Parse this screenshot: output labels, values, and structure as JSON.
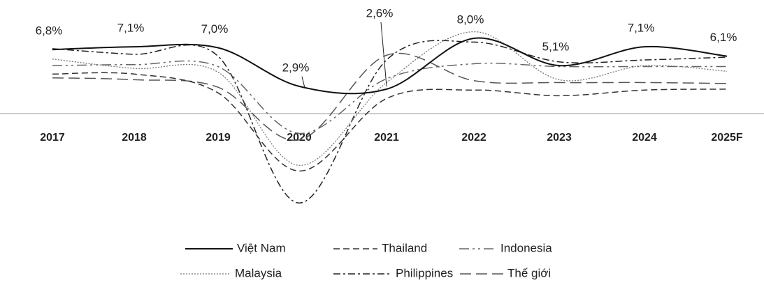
{
  "chart_data": {
    "type": "line",
    "categories": [
      "2017",
      "2018",
      "2019",
      "2020",
      "2021",
      "2022",
      "2023",
      "2024",
      "2025F"
    ],
    "ylim": [
      -10,
      9
    ],
    "series": [
      {
        "name": "Việt Nam",
        "color": "#111111",
        "values": [
          6.8,
          7.1,
          7.0,
          2.9,
          2.6,
          8.0,
          5.1,
          7.1,
          6.1
        ],
        "value_labels": [
          "6,8%",
          "7,1%",
          "7,0%",
          "2,9%",
          "2,6%",
          "8,0%",
          "5,1%",
          "7,1%",
          "6,1%"
        ]
      },
      {
        "name": "Thailand",
        "color": "#333333",
        "values": [
          4.2,
          4.2,
          2.2,
          -6.1,
          1.6,
          2.5,
          1.9,
          2.5,
          2.6
        ]
      },
      {
        "name": "Indonesia",
        "color": "#666666",
        "values": [
          5.1,
          5.2,
          5.0,
          -2.1,
          3.7,
          5.3,
          5.0,
          5.0,
          5.0
        ]
      },
      {
        "name": "Malaysia",
        "color": "#777777",
        "values": [
          5.8,
          4.8,
          4.4,
          -5.5,
          3.3,
          8.7,
          3.6,
          5.1,
          4.5
        ]
      },
      {
        "name": "Philippines",
        "color": "#222222",
        "values": [
          6.9,
          6.3,
          6.1,
          -9.5,
          5.7,
          7.6,
          5.5,
          5.7,
          6.0
        ]
      },
      {
        "name": "Thế giới",
        "color": "#555555",
        "values": [
          3.8,
          3.6,
          2.8,
          -2.8,
          6.2,
          3.5,
          3.3,
          3.3,
          3.2
        ]
      }
    ]
  }
}
